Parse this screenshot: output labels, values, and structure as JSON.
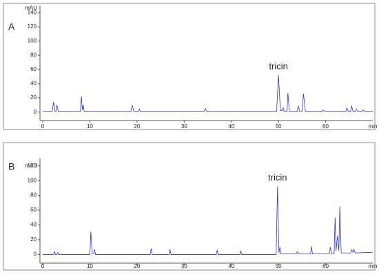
{
  "chart_data": [
    {
      "type": "line",
      "panel_label": "A",
      "x_label": "min",
      "y_label": "mAU",
      "annotation": "tricin",
      "xlim": [
        0,
        70
      ],
      "xticks": [
        0,
        10,
        20,
        30,
        40,
        50,
        60
      ],
      "ylim": [
        -8,
        150
      ],
      "yticks": [
        0,
        20,
        40,
        60,
        80,
        100,
        120,
        140
      ],
      "series": [
        {
          "color": "#3030c8",
          "x": [
            0,
            2,
            2.3,
            2.6,
            2.8,
            3,
            3.3,
            8,
            8.2,
            8.4,
            8.6,
            8.8,
            18.7,
            19,
            19.3,
            20.3,
            20.5,
            20.7,
            34.2,
            34.5,
            34.8,
            49.6,
            50,
            50.4,
            50.8,
            51,
            51.2,
            51.8,
            52,
            52.3,
            54,
            54.2,
            54.5,
            55,
            55.3,
            55.7,
            59.3,
            59.5,
            59.8,
            64.3,
            64.5,
            64.8,
            65.3,
            65.5,
            65.8,
            66.3,
            66.5,
            66.8,
            67.8,
            68,
            68.3,
            70
          ],
          "values": [
            1,
            1,
            14,
            1,
            1,
            10,
            1,
            1,
            22,
            3,
            10,
            1,
            1,
            10,
            1,
            1,
            4,
            1,
            1,
            5,
            1,
            1,
            52,
            2,
            2,
            6,
            1,
            1,
            27,
            1,
            1,
            9,
            1,
            1,
            26,
            1,
            1,
            3,
            1,
            1,
            6,
            1,
            1,
            9,
            1,
            1,
            4,
            1,
            1,
            3,
            1,
            1
          ]
        }
      ]
    },
    {
      "type": "line",
      "panel_label": "B",
      "x_label": "min",
      "y_label": "mAU",
      "annotation": "tricin",
      "xlim": [
        0,
        70
      ],
      "xticks": [
        0,
        10,
        20,
        30,
        40,
        50,
        60
      ],
      "ylim": [
        -8,
        130
      ],
      "yticks": [
        0,
        20,
        40,
        60,
        80,
        100,
        120
      ],
      "series": [
        {
          "color": "#3030c8",
          "x": [
            0,
            2.3,
            2.5,
            2.7,
            3,
            3.2,
            3.4,
            10,
            10.2,
            10.5,
            10.8,
            11,
            11.2,
            22.8,
            23,
            23.2,
            26.8,
            27,
            27.2,
            36.8,
            37,
            37.2,
            41.8,
            42,
            42.2,
            49.5,
            49.8,
            50.1,
            50.3,
            50.5,
            53.8,
            54,
            54.2,
            56.8,
            57,
            57.2,
            60.8,
            61,
            61.3,
            61.8,
            62,
            62.2,
            62.5,
            62.8,
            63,
            63.3,
            65.3,
            65.5,
            65.8,
            66,
            66.3,
            70
          ],
          "values": [
            0,
            0,
            4,
            0,
            0,
            3,
            0,
            0,
            31,
            1,
            1,
            7,
            0,
            0,
            8,
            0,
            0,
            7,
            0,
            0,
            6,
            0,
            0,
            5,
            0,
            0,
            92,
            2,
            10,
            1,
            1,
            4,
            1,
            1,
            11,
            1,
            1,
            10,
            1,
            1,
            50,
            5,
            25,
            5,
            65,
            2,
            2,
            6,
            3,
            7,
            2,
            3
          ]
        }
      ]
    }
  ]
}
